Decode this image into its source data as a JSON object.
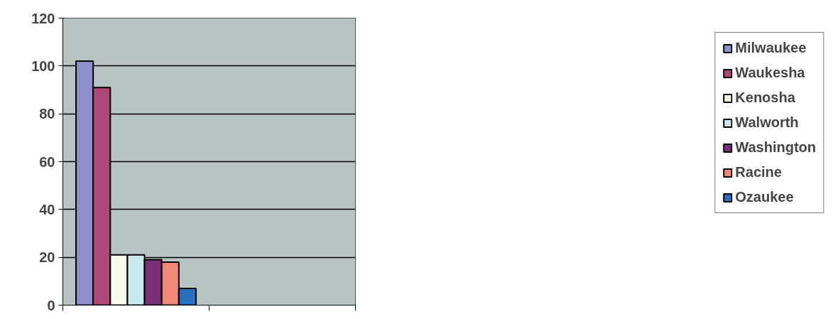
{
  "chart_data": {
    "type": "bar",
    "categories": [
      null,
      null
    ],
    "series": [
      {
        "name": "Milwaukee",
        "color": "#8c8fc8",
        "values": [
          102,
          null
        ]
      },
      {
        "name": "Waukesha",
        "color": "#b0487a",
        "values": [
          91,
          null
        ]
      },
      {
        "name": "Kenosha",
        "color": "#fafae8",
        "values": [
          21,
          null
        ]
      },
      {
        "name": "Walworth",
        "color": "#c8e8f0",
        "values": [
          21,
          null
        ]
      },
      {
        "name": "Washington",
        "color": "#7a3078",
        "values": [
          19,
          null
        ]
      },
      {
        "name": "Racine",
        "color": "#f08878",
        "values": [
          18,
          null
        ]
      },
      {
        "name": "Ozaukee",
        "color": "#2a70c0",
        "values": [
          7,
          null
        ]
      }
    ],
    "ylim": [
      0,
      120
    ],
    "yticks": [
      0,
      20,
      40,
      60,
      80,
      100,
      120
    ],
    "grid": "y",
    "legend": "right"
  }
}
